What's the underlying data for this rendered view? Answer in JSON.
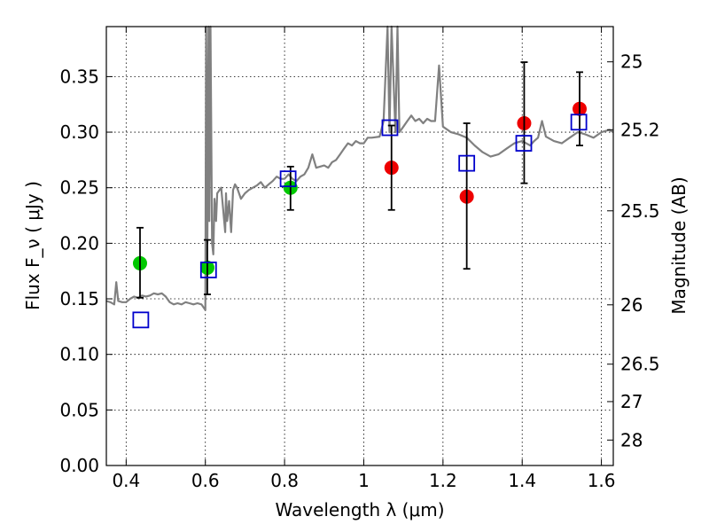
{
  "chart_data": {
    "type": "scatter",
    "title": "",
    "xlabel": "Wavelength  λ (μm)",
    "ylabel": "Flux  F_ν  ( μJy )",
    "ylabel_right": "Magnitude (AB)",
    "xlim": [
      0.35,
      1.63
    ],
    "ylim": [
      0.0,
      0.395
    ],
    "grid": true,
    "legend": "none",
    "x_ticks": [
      0.4,
      0.6,
      0.8,
      1.0,
      1.2,
      1.4,
      1.6
    ],
    "x_tick_labels": [
      "0.4",
      "0.6",
      "0.8",
      "1",
      "1.2",
      "1.4",
      "1.6"
    ],
    "y_ticks": [
      0.0,
      0.05,
      0.1,
      0.15,
      0.2,
      0.25,
      0.3,
      0.35
    ],
    "y_tick_labels": [
      "0.00",
      "0.05",
      "0.10",
      "0.15",
      "0.20",
      "0.25",
      "0.30",
      "0.35"
    ],
    "right_ticks": [
      {
        "label": "25",
        "flux": 0.3633
      },
      {
        "label": "25.2",
        "flux": 0.3022
      },
      {
        "label": "25.5",
        "flux": 0.2292
      },
      {
        "label": "26",
        "flux": 0.1446
      },
      {
        "label": "26.5",
        "flux": 0.0912
      },
      {
        "label": "27",
        "flux": 0.0575
      },
      {
        "label": "28",
        "flux": 0.0229
      }
    ],
    "colors": {
      "spectrum": "#808080",
      "green_points": "#00c800",
      "red_points": "#ee0000",
      "model_squares": "#0000cc",
      "errorbars": "#000000",
      "grid": "#000000"
    },
    "series": [
      {
        "kind": "line",
        "x": [
          0.35,
          0.36,
          0.37,
          0.375,
          0.38,
          0.39,
          0.4,
          0.41,
          0.42,
          0.43,
          0.44,
          0.45,
          0.46,
          0.47,
          0.48,
          0.49,
          0.5,
          0.51,
          0.52,
          0.53,
          0.54,
          0.55,
          0.56,
          0.57,
          0.58,
          0.59,
          0.6,
          0.602,
          0.605,
          0.608,
          0.61,
          0.613,
          0.617,
          0.62,
          0.623,
          0.627,
          0.63,
          0.64,
          0.65,
          0.652,
          0.655,
          0.66,
          0.665,
          0.67,
          0.675,
          0.68,
          0.69,
          0.7,
          0.71,
          0.72,
          0.73,
          0.74,
          0.75,
          0.76,
          0.77,
          0.78,
          0.79,
          0.8,
          0.81,
          0.82,
          0.83,
          0.84,
          0.85,
          0.86,
          0.87,
          0.88,
          0.9,
          0.91,
          0.92,
          0.93,
          0.94,
          0.95,
          0.96,
          0.97,
          0.98,
          0.99,
          1.0,
          1.01,
          1.02,
          1.04,
          1.05,
          1.06,
          1.065,
          1.07,
          1.08,
          1.085,
          1.09,
          1.1,
          1.11,
          1.12,
          1.13,
          1.14,
          1.15,
          1.16,
          1.17,
          1.18,
          1.19,
          1.2,
          1.22,
          1.24,
          1.26,
          1.28,
          1.3,
          1.32,
          1.34,
          1.36,
          1.38,
          1.4,
          1.42,
          1.43,
          1.44,
          1.45,
          1.46,
          1.48,
          1.5,
          1.52,
          1.54,
          1.56,
          1.58,
          1.6,
          1.62,
          1.63
        ],
        "y": [
          0.148,
          0.147,
          0.145,
          0.165,
          0.148,
          0.147,
          0.147,
          0.15,
          0.152,
          0.151,
          0.153,
          0.152,
          0.153,
          0.155,
          0.154,
          0.155,
          0.152,
          0.147,
          0.145,
          0.146,
          0.145,
          0.147,
          0.146,
          0.145,
          0.146,
          0.145,
          0.14,
          0.4,
          0.2,
          0.4,
          0.22,
          0.4,
          0.2,
          0.19,
          0.24,
          0.22,
          0.245,
          0.25,
          0.21,
          0.245,
          0.22,
          0.238,
          0.21,
          0.248,
          0.253,
          0.25,
          0.24,
          0.245,
          0.248,
          0.25,
          0.252,
          0.255,
          0.25,
          0.253,
          0.256,
          0.26,
          0.258,
          0.258,
          0.262,
          0.258,
          0.256,
          0.26,
          0.262,
          0.268,
          0.28,
          0.268,
          0.27,
          0.268,
          0.273,
          0.275,
          0.28,
          0.285,
          0.29,
          0.288,
          0.292,
          0.29,
          0.29,
          0.295,
          0.295,
          0.296,
          0.31,
          0.4,
          0.3,
          0.4,
          0.3,
          0.4,
          0.3,
          0.305,
          0.31,
          0.315,
          0.31,
          0.312,
          0.308,
          0.312,
          0.31,
          0.31,
          0.36,
          0.305,
          0.3,
          0.298,
          0.295,
          0.288,
          0.282,
          0.278,
          0.28,
          0.285,
          0.29,
          0.292,
          0.288,
          0.292,
          0.295,
          0.31,
          0.296,
          0.292,
          0.29,
          0.295,
          0.3,
          0.298,
          0.295,
          0.3,
          0.302,
          0.3
        ]
      },
      {
        "kind": "markers",
        "marker": "filled-circle",
        "color": "green",
        "x": [
          0.435,
          0.605,
          0.815
        ],
        "y": [
          0.182,
          0.178,
          0.25
        ]
      },
      {
        "kind": "markers",
        "marker": "filled-circle",
        "color": "red",
        "x": [
          1.07,
          1.26,
          1.405,
          1.545
        ],
        "y": [
          0.268,
          0.242,
          0.308,
          0.321
        ]
      },
      {
        "kind": "markers",
        "marker": "open-square",
        "color": "blue",
        "x": [
          0.437,
          0.608,
          0.809,
          1.066,
          1.26,
          1.404,
          1.543
        ],
        "y": [
          0.131,
          0.176,
          0.258,
          0.304,
          0.272,
          0.29,
          0.309
        ]
      },
      {
        "kind": "errorbars",
        "x": [
          0.435,
          0.605,
          0.815,
          1.07,
          1.26,
          1.405,
          1.545
        ],
        "y": [
          0.182,
          0.178,
          0.25,
          0.268,
          0.242,
          0.308,
          0.321
        ],
        "low": [
          0.151,
          0.154,
          0.23,
          0.23,
          0.177,
          0.254,
          0.288
        ],
        "high": [
          0.214,
          0.203,
          0.269,
          0.306,
          0.308,
          0.363,
          0.354
        ]
      }
    ]
  }
}
